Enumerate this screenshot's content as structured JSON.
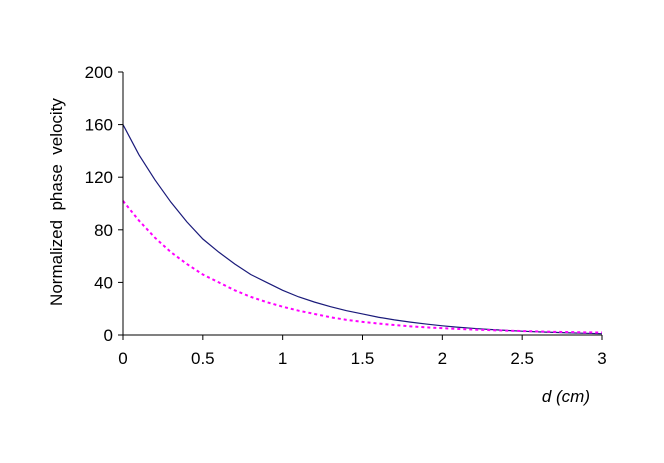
{
  "chart_data": {
    "type": "line",
    "title": "",
    "xlabel": "d (cm)",
    "ylabel": "Normalized  phase  velocity",
    "xlim": [
      0,
      3
    ],
    "ylim": [
      0,
      200
    ],
    "x_ticks": [
      "0",
      "0.5",
      "1",
      "1.5",
      "2",
      "2.5",
      "3"
    ],
    "y_ticks": [
      "0",
      "40",
      "80",
      "120",
      "160",
      "200"
    ],
    "grid": false,
    "legend": "none",
    "x": [
      0,
      0.1,
      0.2,
      0.3,
      0.4,
      0.5,
      0.6,
      0.7,
      0.8,
      0.9,
      1.0,
      1.1,
      1.2,
      1.3,
      1.4,
      1.5,
      1.6,
      1.7,
      1.8,
      1.9,
      2.0,
      2.1,
      2.2,
      2.3,
      2.4,
      2.5,
      2.6,
      2.7,
      2.8,
      2.9,
      3.0
    ],
    "series": [
      {
        "color": "#1a1a7a",
        "style": "solid",
        "values": [
          160,
          137,
          118,
          101,
          86,
          73,
          63,
          54,
          46,
          40,
          34,
          29,
          25,
          21.5,
          18.5,
          16,
          13.5,
          11.5,
          9.8,
          8.3,
          7,
          5.9,
          5.0,
          4.2,
          3.5,
          2.9,
          2.4,
          2.0,
          1.6,
          1.3,
          1.0
        ]
      },
      {
        "color": "#ff00ff",
        "style": "dashed",
        "values": [
          102,
          87,
          74,
          63,
          54,
          46,
          40,
          34,
          29,
          25,
          21.5,
          18.5,
          16,
          13.5,
          11.5,
          10,
          8.7,
          7.6,
          6.6,
          5.8,
          5.2,
          4.6,
          4.1,
          3.7,
          3.3,
          3.0,
          2.7,
          2.4,
          2.2,
          2.0,
          1.9
        ]
      }
    ]
  }
}
